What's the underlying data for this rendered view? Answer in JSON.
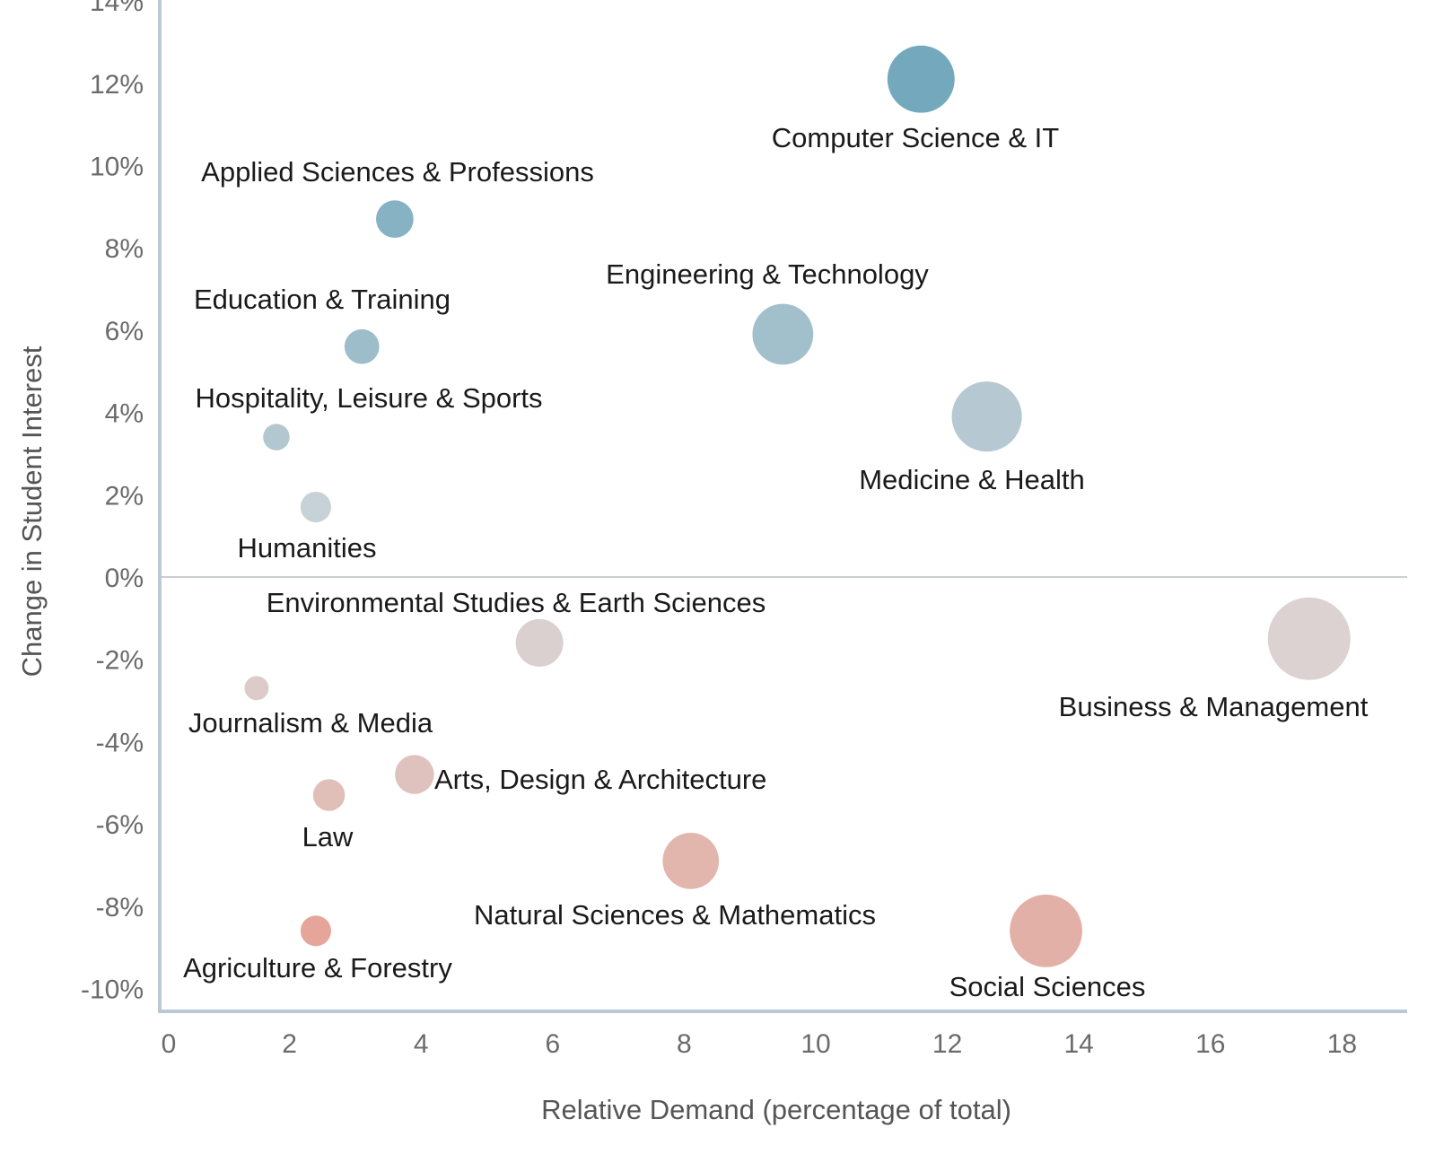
{
  "chart_data": {
    "type": "scatter",
    "variant": "bubble",
    "title": "",
    "xlabel": "Relative Demand (percentage of total)",
    "ylabel": "Change in Student Interest",
    "xlim": [
      0,
      19
    ],
    "ylim": [
      -10.5,
      14
    ],
    "xticks": [
      "0",
      "2",
      "4",
      "6",
      "8",
      "10",
      "12",
      "14",
      "16",
      "18"
    ],
    "yticks": [
      "14%",
      "12%",
      "10%",
      "8%",
      "6%",
      "4%",
      "2%",
      "0%",
      "-2%",
      "-4%",
      "-6%",
      "-8%",
      "-10%"
    ],
    "grid": false,
    "zero_line": true,
    "bubble_size": "proportional to relative demand",
    "points": [
      {
        "label": "Computer Science & IT",
        "x": 11.6,
        "y": 12.1,
        "color": "#74a9bd"
      },
      {
        "label": "Applied Sciences & Professions",
        "x": 3.6,
        "y": 8.7,
        "color": "#87b2c4"
      },
      {
        "label": "Education & Training",
        "x": 3.1,
        "y": 5.6,
        "color": "#9dbdcb"
      },
      {
        "label": "Hospitality, Leisure & Sports",
        "x": 1.8,
        "y": 3.4,
        "color": "#b3c7d1"
      },
      {
        "label": "Humanities",
        "x": 2.4,
        "y": 1.7,
        "color": "#c6d2d7"
      },
      {
        "label": "Engineering & Technology",
        "x": 9.5,
        "y": 5.9,
        "color": "#a2c0cc"
      },
      {
        "label": "Medicine & Health",
        "x": 12.6,
        "y": 3.9,
        "color": "#b6c9d2"
      },
      {
        "label": "Environmental Studies & Earth Sciences",
        "x": 5.8,
        "y": -1.6,
        "color": "#d9d0cf"
      },
      {
        "label": "Business & Management",
        "x": 17.5,
        "y": -1.5,
        "color": "#dbd2d1"
      },
      {
        "label": "Journalism & Media",
        "x": 1.5,
        "y": -2.7,
        "color": "#dccbc8"
      },
      {
        "label": "Arts, Design & Architecture",
        "x": 3.9,
        "y": -4.8,
        "color": "#dfc2bd"
      },
      {
        "label": "Law",
        "x": 2.6,
        "y": -5.3,
        "color": "#e0bfb9"
      },
      {
        "label": "Natural Sciences & Mathematics",
        "x": 8.1,
        "y": -6.9,
        "color": "#e2b5ad"
      },
      {
        "label": "Social Sciences",
        "x": 13.5,
        "y": -8.6,
        "color": "#e3b0a7"
      },
      {
        "label": "Agriculture & Forestry",
        "x": 2.4,
        "y": -8.6,
        "color": "#e5a598"
      }
    ]
  }
}
